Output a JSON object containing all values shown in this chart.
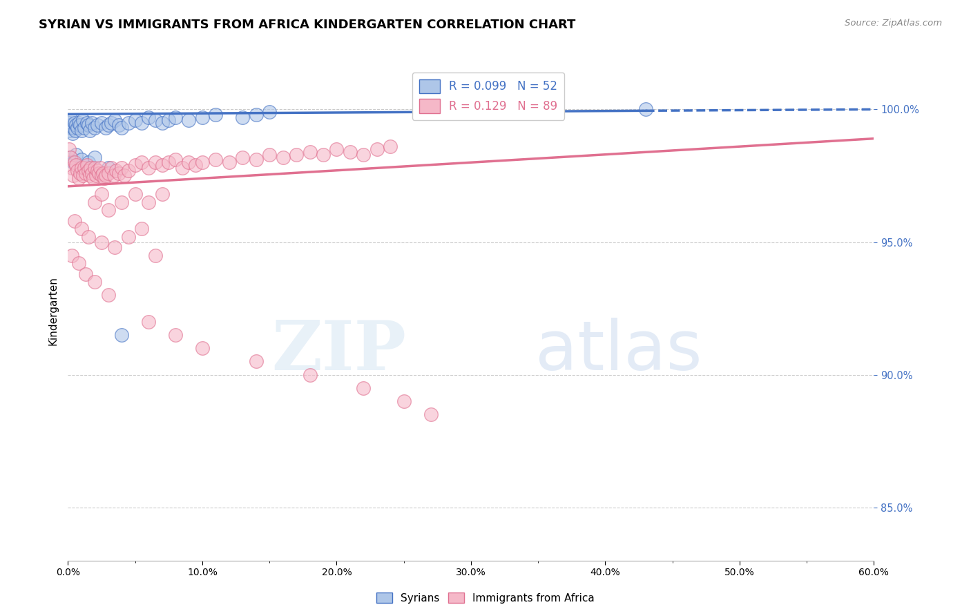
{
  "title": "SYRIAN VS IMMIGRANTS FROM AFRICA KINDERGARTEN CORRELATION CHART",
  "source": "Source: ZipAtlas.com",
  "ylabel": "Kindergarten",
  "x_min": 0.0,
  "x_max": 60.0,
  "y_min": 83.0,
  "y_max": 101.8,
  "blue_R": 0.099,
  "blue_N": 52,
  "pink_R": 0.129,
  "pink_N": 89,
  "blue_color": "#aec6e8",
  "pink_color": "#f5b8c8",
  "blue_line_color": "#4472c4",
  "pink_line_color": "#e07090",
  "watermark_zip": "ZIP",
  "watermark_atlas": "atlas",
  "blue_line_y0": 99.82,
  "blue_line_y1": 100.0,
  "blue_solid_x_end": 43.0,
  "pink_line_y0": 97.1,
  "pink_line_y1": 98.9,
  "syrians_x": [
    0.1,
    0.15,
    0.2,
    0.25,
    0.3,
    0.35,
    0.4,
    0.5,
    0.55,
    0.6,
    0.7,
    0.8,
    0.9,
    1.0,
    1.1,
    1.2,
    1.4,
    1.5,
    1.6,
    1.8,
    2.0,
    2.2,
    2.5,
    2.8,
    3.0,
    3.2,
    3.5,
    3.8,
    4.0,
    4.5,
    5.0,
    5.5,
    6.0,
    6.5,
    7.0,
    7.5,
    8.0,
    9.0,
    10.0,
    11.0,
    13.0,
    14.0,
    15.0,
    0.2,
    0.4,
    0.6,
    1.0,
    1.5,
    2.0,
    3.0,
    4.0,
    43.0
  ],
  "syrians_y": [
    99.5,
    99.2,
    99.4,
    99.3,
    99.6,
    99.1,
    99.3,
    99.5,
    99.2,
    99.4,
    99.3,
    99.5,
    99.4,
    99.2,
    99.6,
    99.3,
    99.5,
    99.4,
    99.2,
    99.5,
    99.3,
    99.4,
    99.5,
    99.3,
    99.4,
    99.5,
    99.6,
    99.4,
    99.3,
    99.5,
    99.6,
    99.5,
    99.7,
    99.6,
    99.5,
    99.6,
    99.7,
    99.6,
    99.7,
    99.8,
    99.7,
    99.8,
    99.9,
    98.2,
    98.0,
    98.3,
    98.1,
    98.0,
    98.2,
    97.8,
    91.5,
    100.0
  ],
  "africa_x": [
    0.1,
    0.2,
    0.3,
    0.4,
    0.5,
    0.6,
    0.7,
    0.8,
    0.9,
    1.0,
    1.1,
    1.2,
    1.3,
    1.4,
    1.5,
    1.6,
    1.7,
    1.8,
    1.9,
    2.0,
    2.1,
    2.2,
    2.3,
    2.4,
    2.5,
    2.6,
    2.7,
    2.8,
    3.0,
    3.2,
    3.4,
    3.6,
    3.8,
    4.0,
    4.2,
    4.5,
    5.0,
    5.5,
    6.0,
    6.5,
    7.0,
    7.5,
    8.0,
    8.5,
    9.0,
    9.5,
    10.0,
    11.0,
    12.0,
    13.0,
    14.0,
    15.0,
    16.0,
    17.0,
    18.0,
    19.0,
    20.0,
    21.0,
    22.0,
    23.0,
    24.0,
    2.0,
    2.5,
    3.0,
    4.0,
    5.0,
    6.0,
    7.0,
    0.5,
    1.0,
    1.5,
    2.5,
    3.5,
    4.5,
    5.5,
    6.5,
    0.3,
    0.8,
    1.3,
    2.0,
    3.0,
    6.0,
    8.0,
    10.0,
    14.0,
    18.0,
    22.0,
    25.0,
    27.0
  ],
  "africa_y": [
    98.5,
    98.2,
    97.8,
    97.5,
    98.0,
    97.9,
    97.7,
    97.4,
    97.6,
    97.8,
    97.5,
    97.8,
    97.6,
    97.9,
    97.7,
    97.5,
    97.8,
    97.6,
    97.4,
    97.8,
    97.5,
    97.7,
    97.6,
    97.8,
    97.5,
    97.6,
    97.4,
    97.5,
    97.6,
    97.8,
    97.5,
    97.7,
    97.6,
    97.8,
    97.5,
    97.7,
    97.9,
    98.0,
    97.8,
    98.0,
    97.9,
    98.0,
    98.1,
    97.8,
    98.0,
    97.9,
    98.0,
    98.1,
    98.0,
    98.2,
    98.1,
    98.3,
    98.2,
    98.3,
    98.4,
    98.3,
    98.5,
    98.4,
    98.3,
    98.5,
    98.6,
    96.5,
    96.8,
    96.2,
    96.5,
    96.8,
    96.5,
    96.8,
    95.8,
    95.5,
    95.2,
    95.0,
    94.8,
    95.2,
    95.5,
    94.5,
    94.5,
    94.2,
    93.8,
    93.5,
    93.0,
    92.0,
    91.5,
    91.0,
    90.5,
    90.0,
    89.5,
    89.0,
    88.5
  ]
}
